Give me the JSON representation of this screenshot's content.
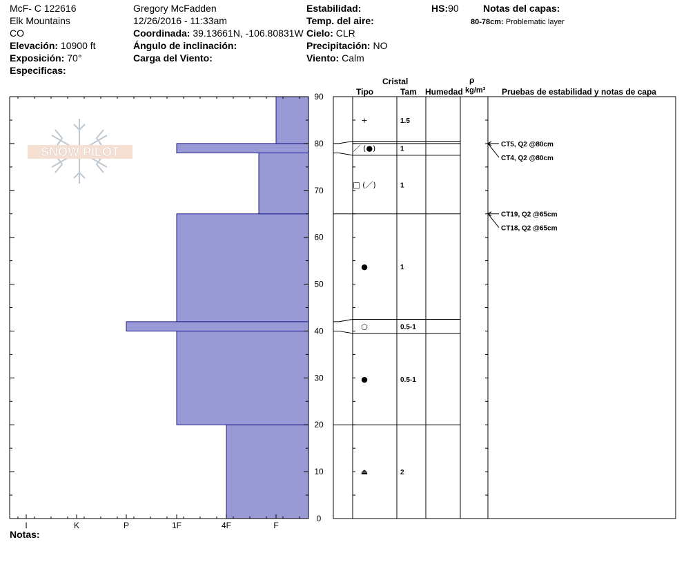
{
  "header": {
    "col1": {
      "id": "McF- C  122616",
      "range": "Elk Mountains",
      "state": "CO",
      "elevation_label": "Elevación:",
      "elevation_value": "10900 ft",
      "exposure_label": "Exposición:",
      "exposure_value": "70°",
      "specifics_label": "Especificas:"
    },
    "col2": {
      "observer": "Gregory McFadden",
      "datetime": "12/26/2016 - 11:33am",
      "coord_label": "Coordinada:",
      "coord_value": "39.13661N, -106.80831W",
      "slope_label": "Ángulo de inclinación:",
      "wind_load_label": "Carga del Viento:"
    },
    "col3": {
      "stability_label": "Estabilidad:",
      "air_temp_label": "Temp. del aire:",
      "sky_label": "Cielo:",
      "sky_value": "CLR",
      "precip_label": "Precipitación:",
      "precip_value": "NO",
      "wind_label": "Viento:",
      "wind_value": "Calm"
    },
    "hs_label": "HS:",
    "hs_value": "90",
    "layer_notes_title": "Notas del capas:",
    "layer_note_depth": "80-78cm:",
    "layer_note_text": "Problematic layer"
  },
  "logo_text": "SNOW PILOT",
  "notes_label": "Notas:",
  "table_headers": {
    "crystal": "Cristal",
    "type": "Tipo",
    "size": "Tam",
    "moisture": "Humedad",
    "rho": "ρ",
    "density_unit": "kg/m³",
    "tests": "Pruebas de estabilidad y notas de capa"
  },
  "colors": {
    "bar_fill": "#9999d6",
    "bar_stroke": "#1a1a8c"
  },
  "chart_data": {
    "type": "bar",
    "title": "",
    "xlabel": "",
    "ylabel": "",
    "x_categories": [
      "I",
      "K",
      "P",
      "1F",
      "4F",
      "F"
    ],
    "ylim": [
      0,
      90
    ],
    "y_ticks": [
      0,
      10,
      20,
      30,
      40,
      50,
      60,
      70,
      80,
      90
    ],
    "hardness_layers": [
      {
        "bottom": 0,
        "top": 20,
        "hardness": "4F"
      },
      {
        "bottom": 20,
        "top": 40,
        "hardness": "1F"
      },
      {
        "bottom": 40,
        "top": 42,
        "hardness": "P"
      },
      {
        "bottom": 42,
        "top": 65,
        "hardness": "1F"
      },
      {
        "bottom": 65,
        "top": 78,
        "hardness": "4F-F"
      },
      {
        "bottom": 78,
        "top": 80,
        "hardness": "1F"
      },
      {
        "bottom": 80,
        "top": 90,
        "hardness": "F"
      }
    ],
    "layers": [
      {
        "bottom": 80,
        "top": 90,
        "crystal": "+",
        "size": "1.5"
      },
      {
        "bottom": 77.5,
        "top": 80.5,
        "crystal": "／ (●)",
        "size": "1"
      },
      {
        "bottom": 65,
        "top": 77.5,
        "crystal": "□ (／)",
        "size": "1"
      },
      {
        "bottom": 42.5,
        "top": 65,
        "crystal": "●",
        "size": "1"
      },
      {
        "bottom": 39.5,
        "top": 42.5,
        "crystal": "○",
        "size": "0.5-1"
      },
      {
        "bottom": 20,
        "top": 39.5,
        "crystal": "●",
        "size": "0.5-1"
      },
      {
        "bottom": 0,
        "top": 20,
        "crystal": "⏏",
        "size": "2"
      }
    ],
    "stability_tests": [
      {
        "depth": 80,
        "labels": [
          "CT5, Q2 @80cm",
          "CT4, Q2 @80cm"
        ]
      },
      {
        "depth": 65,
        "labels": [
          "CT19, Q2 @65cm",
          "CT18, Q2 @65cm"
        ]
      }
    ]
  }
}
